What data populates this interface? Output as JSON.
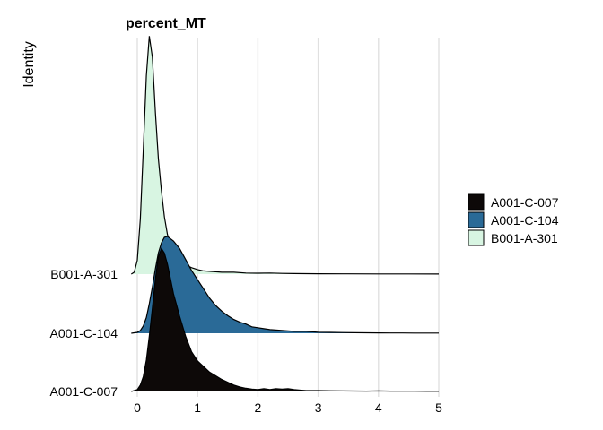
{
  "chart_data": {
    "type": "ridgeline",
    "title": "percent_MT",
    "ylabel": "Identity",
    "xlim": [
      0,
      5
    ],
    "x_ticks": [
      0,
      1,
      2,
      3,
      4,
      5
    ],
    "grid": "vertical major gridlines",
    "legend_position": "right",
    "colors": {
      "A001-C-007": "#0d0908",
      "A001-C-104": "#2a6a97",
      "B001-A-301": "#d8f5e2"
    },
    "categories": [
      "A001-C-007",
      "A001-C-104",
      "B001-A-301"
    ],
    "legend": [
      "A001-C-007",
      "A001-C-104",
      "B001-A-301"
    ],
    "series": [
      {
        "name": "A001-C-007",
        "x": [
          -0.1,
          0.0,
          0.05,
          0.1,
          0.15,
          0.2,
          0.25,
          0.3,
          0.35,
          0.4,
          0.45,
          0.5,
          0.55,
          0.6,
          0.65,
          0.7,
          0.8,
          0.9,
          1.0,
          1.1,
          1.2,
          1.3,
          1.4,
          1.5,
          1.6,
          1.7,
          1.8,
          1.9,
          2.0,
          2.1,
          2.2,
          2.3,
          2.4,
          2.5,
          2.6,
          2.7,
          2.8,
          3.0,
          3.2,
          3.4,
          3.6,
          3.8,
          4.0,
          4.2,
          4.4,
          4.6,
          4.8,
          5.0
        ],
        "density": [
          0.0,
          0.02,
          0.07,
          0.16,
          0.34,
          0.6,
          0.9,
          1.22,
          1.46,
          1.55,
          1.5,
          1.38,
          1.22,
          1.06,
          0.94,
          0.82,
          0.6,
          0.43,
          0.33,
          0.27,
          0.21,
          0.17,
          0.13,
          0.1,
          0.07,
          0.05,
          0.035,
          0.025,
          0.02,
          0.03,
          0.02,
          0.03,
          0.025,
          0.03,
          0.02,
          0.015,
          0.01,
          0.01,
          0.008,
          0.006,
          0.005,
          0.004,
          0.006,
          0.004,
          0.003,
          0.003,
          0.002,
          0.002
        ]
      },
      {
        "name": "A001-C-104",
        "x": [
          -0.1,
          0.0,
          0.05,
          0.1,
          0.15,
          0.2,
          0.25,
          0.3,
          0.35,
          0.4,
          0.45,
          0.5,
          0.6,
          0.7,
          0.8,
          0.9,
          1.0,
          1.1,
          1.2,
          1.3,
          1.4,
          1.5,
          1.6,
          1.7,
          1.8,
          1.9,
          2.0,
          2.1,
          2.2,
          2.4,
          2.6,
          2.8,
          3.0,
          3.2,
          3.4,
          3.6,
          3.8,
          4.0,
          4.2,
          4.4,
          4.6,
          4.8,
          5.0
        ],
        "density": [
          0.0,
          0.01,
          0.03,
          0.08,
          0.17,
          0.32,
          0.5,
          0.7,
          0.87,
          0.98,
          1.04,
          1.05,
          1.0,
          0.92,
          0.8,
          0.68,
          0.58,
          0.48,
          0.38,
          0.3,
          0.24,
          0.19,
          0.15,
          0.12,
          0.1,
          0.07,
          0.06,
          0.05,
          0.04,
          0.03,
          0.02,
          0.02,
          0.012,
          0.01,
          0.008,
          0.006,
          0.005,
          0.004,
          0.003,
          0.003,
          0.002,
          0.002,
          0.002
        ]
      },
      {
        "name": "B001-A-301",
        "x": [
          -0.1,
          -0.05,
          0.0,
          0.05,
          0.1,
          0.15,
          0.2,
          0.25,
          0.3,
          0.35,
          0.4,
          0.45,
          0.5,
          0.55,
          0.6,
          0.7,
          0.8,
          0.9,
          1.0,
          1.1,
          1.2,
          1.4,
          1.6,
          1.8,
          2.0,
          2.2,
          2.4,
          2.6,
          2.8,
          3.0,
          3.5,
          4.0,
          4.5,
          5.0
        ],
        "density": [
          0.0,
          0.02,
          0.15,
          0.6,
          1.35,
          2.15,
          2.58,
          2.35,
          1.75,
          1.25,
          0.9,
          0.62,
          0.43,
          0.31,
          0.24,
          0.15,
          0.1,
          0.07,
          0.05,
          0.035,
          0.03,
          0.02,
          0.02,
          0.012,
          0.01,
          0.012,
          0.008,
          0.006,
          0.005,
          0.004,
          0.003,
          0.002,
          0.002,
          0.001
        ]
      }
    ]
  }
}
